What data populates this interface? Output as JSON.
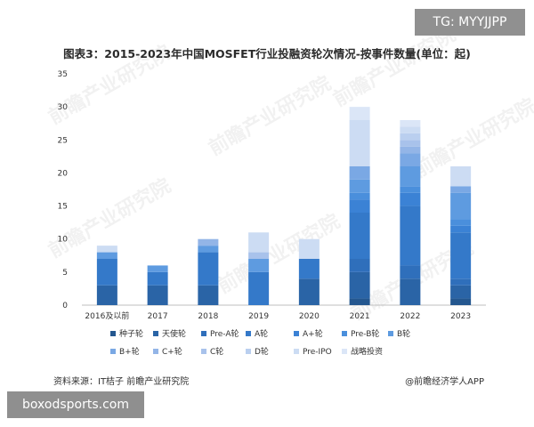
{
  "badges": {
    "telegram": "TG: MYYJJPP",
    "site": "boxodsports.com"
  },
  "footer": {
    "source": "资料来源：IT桔子 前瞻产业研究院",
    "app": "@前瞻经济学人APP"
  },
  "watermark_text": "前瞻产业研究院",
  "chart_data": {
    "type": "bar",
    "stacked": true,
    "title": "图表3：2015-2023年中国MOSFET行业投融资轮次情况-按事件数量(单位：起)",
    "xlabel": "",
    "ylabel": "",
    "ylim": [
      0,
      35
    ],
    "yticks": [
      0,
      5,
      10,
      15,
      20,
      25,
      30,
      35
    ],
    "grid": false,
    "legend_position": "bottom",
    "categories": [
      "2016及以前",
      "2017",
      "2018",
      "2019",
      "2020",
      "2021",
      "2022",
      "2023"
    ],
    "series": [
      {
        "name": "种子轮",
        "color": "#24578f",
        "values": [
          0,
          0,
          0,
          0,
          0,
          1,
          0,
          1
        ]
      },
      {
        "name": "天使轮",
        "color": "#2a64a6",
        "values": [
          3,
          3,
          3,
          0,
          4,
          4,
          4,
          2
        ]
      },
      {
        "name": "Pre-A轮",
        "color": "#2f6fbb",
        "values": [
          0,
          0,
          0,
          0,
          0,
          2,
          2,
          1
        ]
      },
      {
        "name": "A轮",
        "color": "#3479c9",
        "values": [
          4,
          2,
          5,
          5,
          3,
          7,
          9,
          7
        ]
      },
      {
        "name": "A+轮",
        "color": "#3b82d5",
        "values": [
          0,
          0,
          0,
          0,
          0,
          2,
          2,
          1
        ]
      },
      {
        "name": "Pre-B轮",
        "color": "#4a8fdc",
        "values": [
          0,
          0,
          0,
          0,
          0,
          1,
          1,
          1
        ]
      },
      {
        "name": "B轮",
        "color": "#5e9be0",
        "values": [
          1,
          1,
          1,
          2,
          0,
          2,
          3,
          4
        ]
      },
      {
        "name": "B+轮",
        "color": "#7aa8e4",
        "values": [
          0,
          0,
          0,
          0,
          0,
          2,
          2,
          1
        ]
      },
      {
        "name": "C+轮",
        "color": "#93b5e7",
        "values": [
          0,
          0,
          1,
          0,
          0,
          0,
          1,
          0
        ]
      },
      {
        "name": "C轮",
        "color": "#a8c2eb",
        "values": [
          0,
          0,
          0,
          1,
          0,
          0,
          1,
          0
        ]
      },
      {
        "name": "D轮",
        "color": "#bacfef",
        "values": [
          0,
          0,
          0,
          0,
          0,
          0,
          1,
          0
        ]
      },
      {
        "name": "Pre-IPO",
        "color": "#ccdcf3",
        "values": [
          1,
          0,
          0,
          3,
          3,
          7,
          1,
          3
        ]
      },
      {
        "name": "战略投资",
        "color": "#dbe6f7",
        "values": [
          0,
          0,
          0,
          0,
          0,
          2,
          1,
          0
        ]
      }
    ]
  }
}
